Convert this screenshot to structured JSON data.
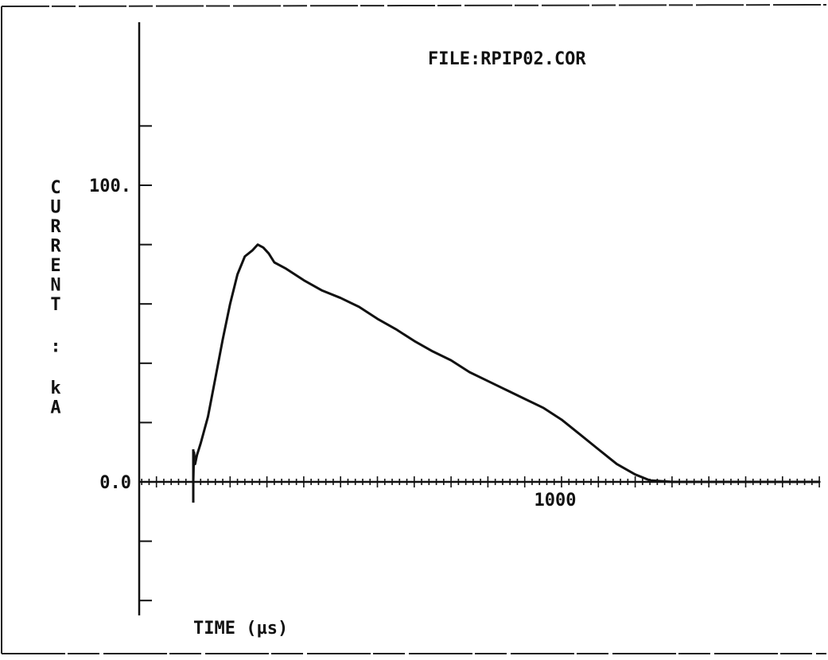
{
  "chart_data": {
    "type": "line",
    "title": "FILE:RPIP02.COR",
    "xlabel": "TIME (µs)",
    "ylabel": "CURRENT : kA",
    "y_tick_labels": [
      {
        "value": 0,
        "label": "0.0"
      },
      {
        "value": 100,
        "label": "100."
      }
    ],
    "x_tick_labels": [
      {
        "value": 1000,
        "label": "1000"
      }
    ],
    "xlim": [
      -150,
      1700
    ],
    "ylim": [
      -45,
      155
    ],
    "y_major_ticks": [
      -40,
      -20,
      20,
      40,
      60,
      80,
      100,
      120
    ],
    "x_minor_step": 20,
    "grid": false,
    "series": [
      {
        "values": [
          [
            0,
            0
          ],
          [
            2,
            10
          ],
          [
            5,
            6
          ],
          [
            10,
            9
          ],
          [
            20,
            13
          ],
          [
            40,
            22
          ],
          [
            60,
            35
          ],
          [
            80,
            48
          ],
          [
            100,
            60
          ],
          [
            120,
            70
          ],
          [
            140,
            76
          ],
          [
            160,
            78
          ],
          [
            175,
            80
          ],
          [
            190,
            79
          ],
          [
            205,
            77
          ],
          [
            220,
            74
          ],
          [
            250,
            72
          ],
          [
            300,
            68
          ],
          [
            350,
            64.5
          ],
          [
            400,
            62
          ],
          [
            450,
            59
          ],
          [
            500,
            55
          ],
          [
            550,
            51.5
          ],
          [
            600,
            47.5
          ],
          [
            650,
            44
          ],
          [
            700,
            41
          ],
          [
            750,
            37
          ],
          [
            800,
            34
          ],
          [
            850,
            31
          ],
          [
            900,
            28
          ],
          [
            950,
            25
          ],
          [
            1000,
            21
          ],
          [
            1050,
            16
          ],
          [
            1100,
            11
          ],
          [
            1150,
            6
          ],
          [
            1200,
            2.5
          ],
          [
            1240,
            0.5
          ],
          [
            1300,
            0
          ],
          [
            1400,
            0
          ],
          [
            1500,
            0
          ],
          [
            1600,
            0
          ],
          [
            1700,
            0
          ]
        ]
      }
    ]
  }
}
